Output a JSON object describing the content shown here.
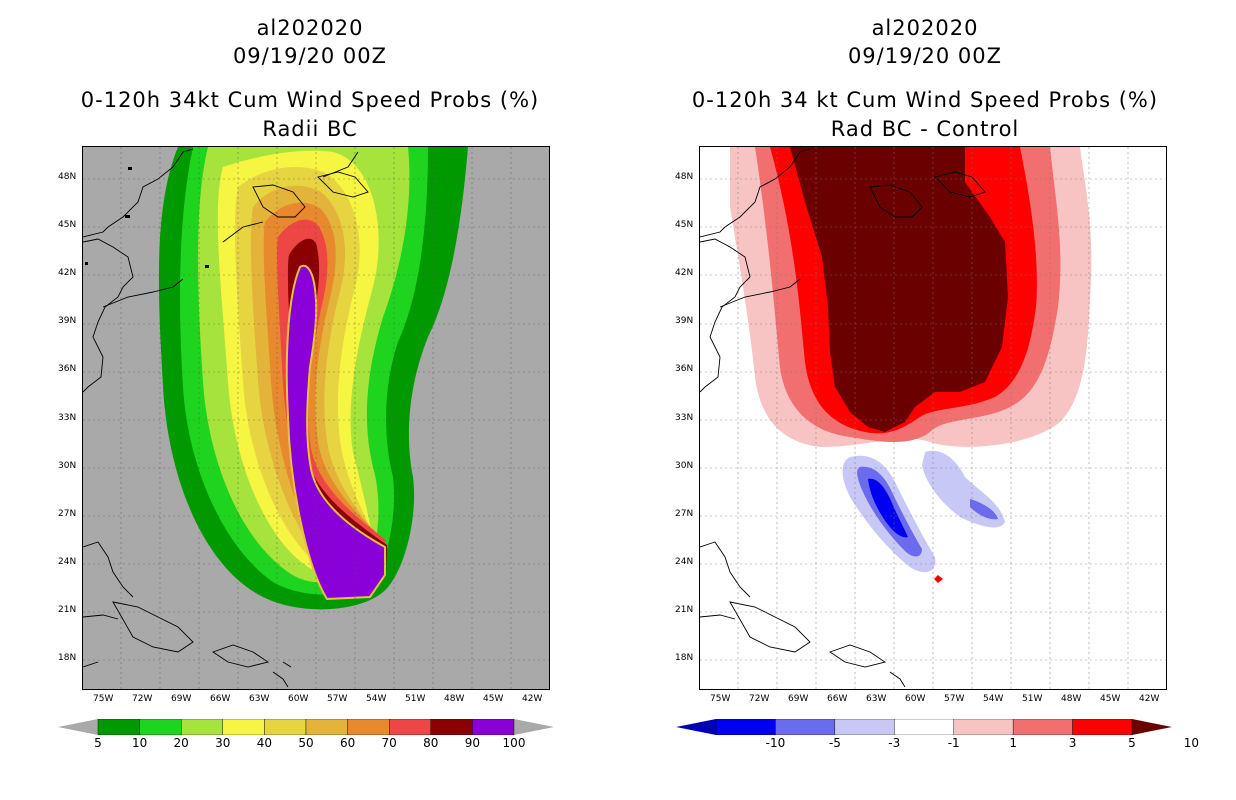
{
  "left_panel": {
    "storm_id": "al202020",
    "datetime": "09/19/20 00Z",
    "title": "0-120h 34kt Cum Wind Speed Probs (%)",
    "subtitle": "Radii BC",
    "colorbar": {
      "labels": [
        "5",
        "10",
        "20",
        "30",
        "40",
        "50",
        "60",
        "70",
        "80",
        "90",
        "100"
      ],
      "colors": [
        "#009a00",
        "#1fd41f",
        "#a6e33c",
        "#f5f542",
        "#e6d441",
        "#e3b33a",
        "#e8892e",
        "#ee4545",
        "#8b0000",
        "#8a00d8"
      ]
    }
  },
  "right_panel": {
    "storm_id": "al202020",
    "datetime": "09/19/20 00Z",
    "title": "0-120h 34 kt Cum Wind Speed Probs (%)",
    "subtitle": "Rad BC - Control",
    "colorbar": {
      "labels": [
        "-10",
        "-5",
        "-3",
        "-1",
        "1",
        "3",
        "5",
        "10"
      ],
      "colors": [
        "#0000b4",
        "#0000f0",
        "#6b6bee",
        "#c8c8f6",
        "#ffffff",
        "#f7c3c3",
        "#f26f6f",
        "#ff0000",
        "#6b0000"
      ]
    }
  },
  "axes": {
    "lon_labels": [
      "75W",
      "72W",
      "69W",
      "66W",
      "63W",
      "60W",
      "57W",
      "54W",
      "51W",
      "48W",
      "45W",
      "42W"
    ],
    "lat_labels": [
      "48N",
      "45N",
      "42N",
      "39N",
      "36N",
      "33N",
      "30N",
      "27N",
      "24N",
      "21N",
      "18N"
    ]
  }
}
